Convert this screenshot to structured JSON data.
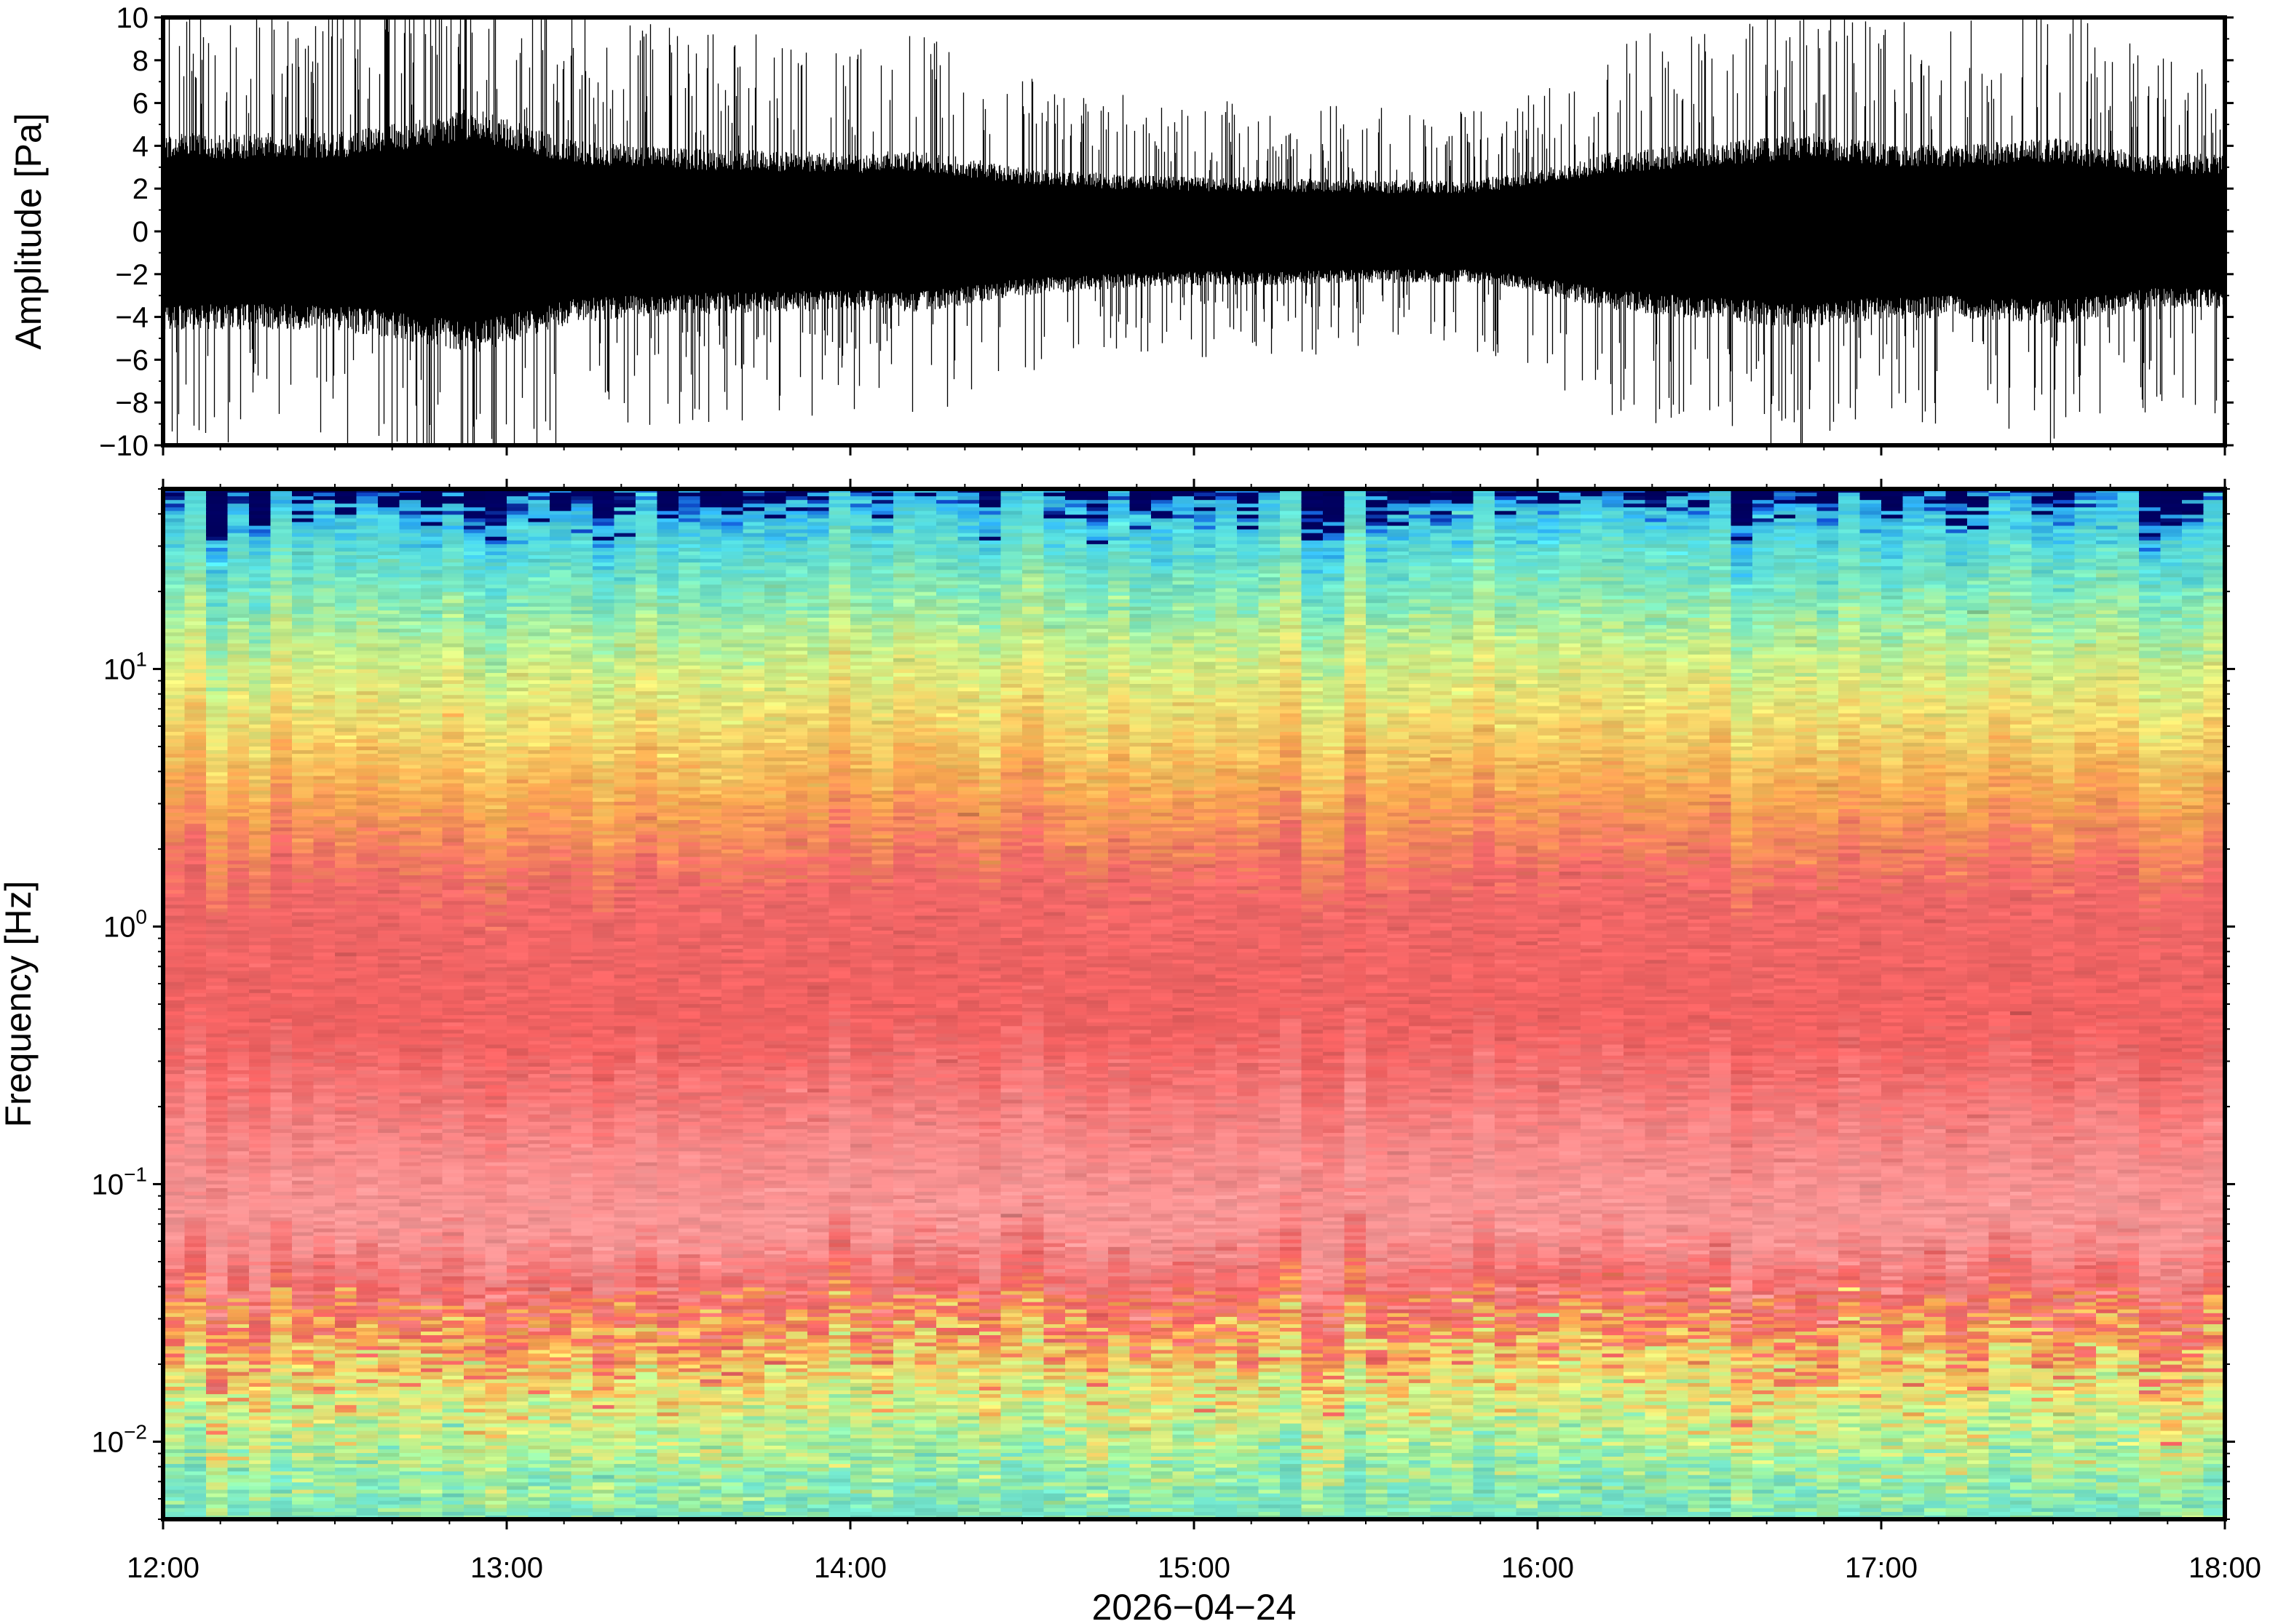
{
  "chart_data": [
    {
      "type": "line",
      "panel": "waveform",
      "ylabel": "Amplitude [Pa]",
      "ylim": [
        -10,
        10
      ],
      "y_ticks": [
        10,
        8,
        6,
        4,
        2,
        0,
        -2,
        -4,
        -6,
        -8,
        -10
      ],
      "y_tick_labels": [
        "10",
        "8",
        "6",
        "4",
        "2",
        "0",
        "−2",
        "−4",
        "−6",
        "−8",
        "−10"
      ],
      "x_range": [
        "12:00",
        "18:00"
      ],
      "series": [
        {
          "color": "#000000",
          "envelope_times_h": [
            12.0,
            12.5,
            12.9,
            13.2,
            13.5,
            14.0,
            14.2,
            14.5,
            14.8,
            15.0,
            15.2,
            15.5,
            15.8,
            16.0,
            16.2,
            16.5,
            16.8,
            17.0,
            17.2,
            17.5,
            17.8,
            18.0
          ],
          "envelope_amplitude_pa": [
            4.0,
            4.0,
            5.0,
            3.7,
            3.4,
            3.2,
            3.3,
            2.6,
            2.3,
            2.2,
            2.2,
            2.1,
            2.1,
            2.5,
            3.2,
            3.6,
            4.0,
            3.6,
            3.5,
            3.8,
            3.1,
            3.2
          ],
          "peak_amplitude_pa": 10
        }
      ],
      "grid": false
    },
    {
      "type": "heatmap",
      "panel": "spectrogram",
      "ylabel": "Frequency [Hz]",
      "y_scale": "log",
      "ylim": [
        0.005,
        50
      ],
      "y_ticks": [
        0.01,
        0.1,
        1,
        10
      ],
      "y_tick_labels": [
        {
          "base": "10",
          "exp": "−2"
        },
        {
          "base": "10",
          "exp": "−1"
        },
        {
          "base": "10",
          "exp": "0"
        },
        {
          "base": "10",
          "exp": "1"
        }
      ],
      "x_range": [
        "12:00",
        "18:00"
      ],
      "colormap": [
        "#000060",
        "#1050d0",
        "#2aa8ee",
        "#50d8e0",
        "#80e8b8",
        "#c8f088",
        "#f0e070",
        "#f8a850",
        "#f06060",
        "#f89898"
      ],
      "levels_by_frequency": [
        {
          "frequency_hz": 0.005,
          "color": "#70e0c8"
        },
        {
          "frequency_hz": 0.008,
          "color": "#9af0a0"
        },
        {
          "frequency_hz": 0.012,
          "color": "#c8f088"
        },
        {
          "frequency_hz": 0.018,
          "color": "#f0e070"
        },
        {
          "frequency_hz": 0.025,
          "color": "#f8a850"
        },
        {
          "frequency_hz": 0.035,
          "color": "#f06060"
        },
        {
          "frequency_hz": 0.07,
          "color": "#f89898"
        },
        {
          "frequency_hz": 0.15,
          "color": "#f88888"
        },
        {
          "frequency_hz": 0.4,
          "color": "#f06060"
        },
        {
          "frequency_hz": 1.5,
          "color": "#f06868"
        },
        {
          "frequency_hz": 3.5,
          "color": "#f8a850"
        },
        {
          "frequency_hz": 7,
          "color": "#f0e070"
        },
        {
          "frequency_hz": 12,
          "color": "#c8f088"
        },
        {
          "frequency_hz": 20,
          "color": "#80e8b8"
        },
        {
          "frequency_hz": 35,
          "color": "#50d8e0"
        },
        {
          "frequency_hz": 45,
          "color": "#2aa8ee"
        },
        {
          "frequency_hz": 48,
          "color": "#1050d0"
        },
        {
          "frequency_hz": 50,
          "color": "#000060"
        }
      ]
    }
  ],
  "x_axis": {
    "ticks_hours": [
      12,
      13,
      14,
      15,
      16,
      17,
      18
    ],
    "tick_labels": [
      "12:00",
      "13:00",
      "14:00",
      "15:00",
      "16:00",
      "17:00",
      "18:00"
    ],
    "xlabel": "2026−04−24"
  }
}
